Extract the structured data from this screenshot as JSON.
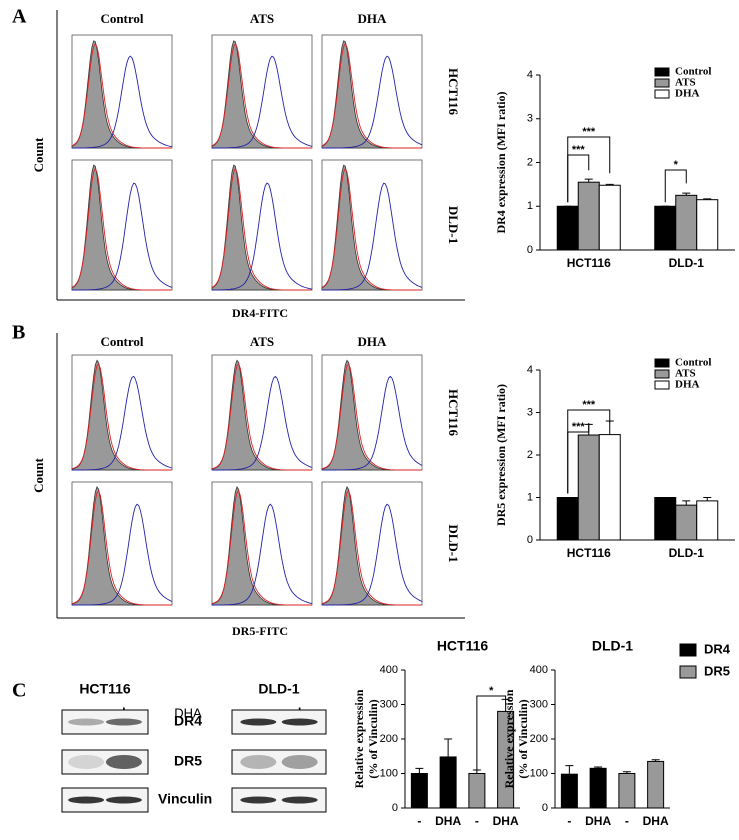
{
  "panel_labels": [
    "A",
    "B",
    "C"
  ],
  "flow": [
    {
      "columns": [
        "Control",
        "ATS",
        "DHA"
      ],
      "rows": [
        "HCT116",
        "DLD-1"
      ],
      "y_label": "Count",
      "x_label": "DR4-FITC"
    },
    {
      "columns": [
        "Control",
        "ATS",
        "DHA"
      ],
      "rows": [
        "HCT116",
        "DLD-1"
      ],
      "y_label": "Count",
      "x_label": "DR5-FITC"
    }
  ],
  "western": {
    "groups": [
      "HCT116",
      "DLD-1"
    ],
    "lanes": [
      "-",
      "+"
    ],
    "treatment": "DHA",
    "bands": [
      "DR4",
      "DR5",
      "Vinculin"
    ]
  },
  "chart_data": [
    {
      "type": "bar",
      "y_label": "DR4 expression (MFI ratio)",
      "categories": [
        "HCT116",
        "DLD-1"
      ],
      "series": [
        {
          "name": "Control",
          "color": "#000000",
          "values": [
            1,
            1
          ],
          "errors": [
            0,
            0
          ]
        },
        {
          "name": "ATS",
          "color": "#999999",
          "values": [
            1.55,
            1.25
          ],
          "errors": [
            0.07,
            0.05
          ]
        },
        {
          "name": "DHA",
          "color": "#ffffff",
          "values": [
            1.48,
            1.15
          ],
          "errors": [
            0.02,
            0.02
          ]
        }
      ],
      "ylim": [
        0,
        4
      ],
      "yticks": [
        0,
        1,
        2,
        3,
        4
      ],
      "annotations": [
        "***",
        "***",
        "*"
      ],
      "legend": "upper right"
    },
    {
      "type": "bar",
      "y_label": "DR5 expression (MFI ratio)",
      "categories": [
        "HCT116",
        "DLD-1"
      ],
      "series": [
        {
          "name": "Control",
          "color": "#000000",
          "values": [
            1,
            1
          ],
          "errors": [
            0,
            0
          ]
        },
        {
          "name": "ATS",
          "color": "#999999",
          "values": [
            2.47,
            0.82
          ],
          "errors": [
            0.25,
            0.1
          ]
        },
        {
          "name": "DHA",
          "color": "#ffffff",
          "values": [
            2.48,
            0.92
          ],
          "errors": [
            0.32,
            0.08
          ]
        }
      ],
      "ylim": [
        0,
        4
      ],
      "yticks": [
        0,
        1,
        2,
        3,
        4
      ],
      "annotations": [
        "***",
        "***"
      ],
      "legend": "upper right"
    },
    {
      "type": "bar",
      "title": "HCT116",
      "y_label": [
        "Relative expression",
        "(% of Vinculin)"
      ],
      "categories": [
        "-",
        "DHA",
        "-",
        "DHA"
      ],
      "series": [
        {
          "color": "#000000",
          "values": [
            100,
            148,
            null,
            null
          ],
          "errors": [
            15,
            52,
            null,
            null
          ]
        },
        {
          "color": "#999999",
          "values": [
            null,
            null,
            100,
            280
          ],
          "errors": [
            null,
            null,
            10,
            35
          ]
        }
      ],
      "ylim": [
        0,
        400
      ],
      "yticks": [
        0,
        100,
        200,
        300,
        400
      ],
      "annotations": [
        "*"
      ]
    },
    {
      "type": "bar",
      "title": "DLD-1",
      "y_label": [
        "Relative expression",
        "(% of Vinculin)"
      ],
      "categories": [
        "-",
        "DHA",
        "-",
        "DHA"
      ],
      "series": [
        {
          "name": "DR4",
          "color": "#000000",
          "values": [
            98,
            115,
            null,
            null
          ],
          "errors": [
            25,
            4,
            null,
            null
          ]
        },
        {
          "name": "DR5",
          "color": "#999999",
          "values": [
            null,
            null,
            100,
            135
          ],
          "errors": [
            null,
            null,
            5,
            5
          ]
        }
      ],
      "ylim": [
        0,
        400
      ],
      "yticks": [
        0,
        100,
        200,
        300,
        400
      ],
      "legend": "upper right"
    }
  ]
}
